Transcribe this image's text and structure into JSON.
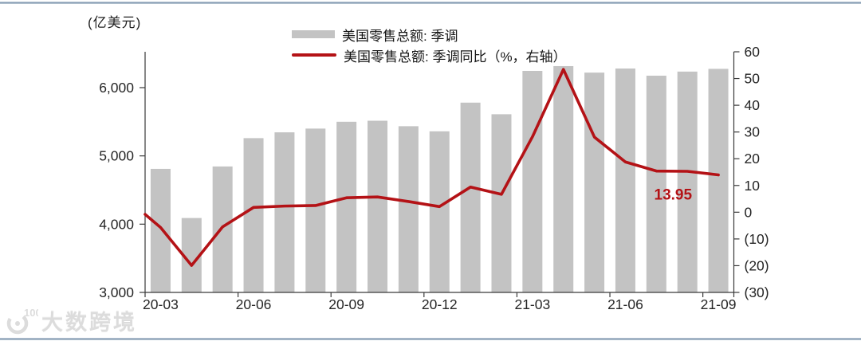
{
  "page": {
    "unit_label": "(亿美元)",
    "watermark": {
      "logo_icon": "swirl-100-icon",
      "text": "大数跨境"
    }
  },
  "legend": [
    {
      "swatch": "bar",
      "color": "#c3c3c3",
      "label": "美国零售总额: 季调"
    },
    {
      "swatch": "line",
      "color": "#b41216",
      "label": "美国零售总额: 季调同比（%，右轴）"
    }
  ],
  "chart_data": {
    "type": "bar",
    "subtype": "bar-line-combo",
    "categories": [
      "20-03",
      "20-04",
      "20-05",
      "20-06",
      "20-07",
      "20-08",
      "20-09",
      "20-10",
      "20-11",
      "20-12",
      "21-01",
      "21-02",
      "21-03",
      "21-04",
      "21-05",
      "21-06",
      "21-07",
      "21-08",
      "21-09"
    ],
    "x_tick_labels": [
      "20-03",
      "20-06",
      "20-09",
      "20-12",
      "21-03",
      "21-06",
      "21-09"
    ],
    "series": [
      {
        "name": "美国零售总额: 季调",
        "type": "bar",
        "axis": "left",
        "color": "#c3c3c3",
        "values": [
          4810,
          4090,
          4845,
          5260,
          5345,
          5400,
          5500,
          5515,
          5435,
          5360,
          5780,
          5610,
          6245,
          6315,
          6220,
          6280,
          6175,
          6235,
          6275
        ]
      },
      {
        "name": "美国零售总额: 季调同比（%，右轴）",
        "type": "line",
        "axis": "right",
        "color": "#b41216",
        "values": [
          -5.7,
          -19.9,
          -5.5,
          1.8,
          2.3,
          2.5,
          5.4,
          5.7,
          4.0,
          2.1,
          9.4,
          6.7,
          28.2,
          53.4,
          28.1,
          18.8,
          15.4,
          15.3,
          13.95
        ]
      }
    ],
    "left_axis": {
      "title": "(亿美元)",
      "tick_labels": [
        "3,000",
        "4,000",
        "5,000",
        "6,000"
      ],
      "tick_values": [
        3000,
        4000,
        5000,
        6000
      ],
      "min": 3000,
      "max": 6525
    },
    "right_axis": {
      "title": "（%，右轴）",
      "tick_labels": [
        "(30)",
        "(20)",
        "(10)",
        "0",
        "10",
        "20",
        "30",
        "40",
        "50",
        "60"
      ],
      "tick_values": [
        -30,
        -20,
        -10,
        0,
        10,
        20,
        30,
        40,
        50,
        60
      ],
      "min": -30,
      "max": 60
    },
    "annotation": {
      "text": "13.95",
      "category": "21-09",
      "color": "#b41216"
    },
    "line_axis_entry_value": -0.8,
    "grid": false,
    "legend_position": "top-center"
  }
}
